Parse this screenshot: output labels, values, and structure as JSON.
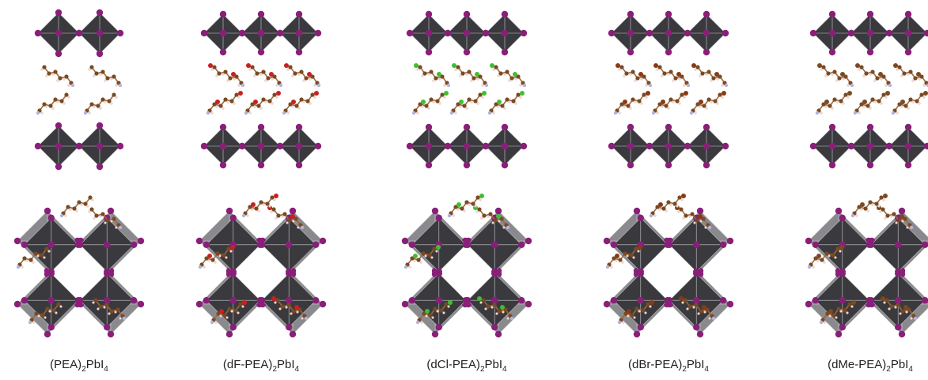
{
  "figure": {
    "panels": [
      {
        "id": "pea",
        "prefix": "(PEA)",
        "sub1": "2",
        "mid": "PbI",
        "sub2": "4",
        "halogen": "none"
      },
      {
        "id": "df-pea",
        "prefix": "(dF-PEA)",
        "sub1": "2",
        "mid": "PbI",
        "sub2": "4",
        "halogen": "F"
      },
      {
        "id": "dcl-pea",
        "prefix": "(dCl-PEA)",
        "sub1": "2",
        "mid": "PbI",
        "sub2": "4",
        "halogen": "Cl"
      },
      {
        "id": "dbr-pea",
        "prefix": "(dBr-PEA)",
        "sub1": "2",
        "mid": "PbI",
        "sub2": "4",
        "halogen": "Br"
      },
      {
        "id": "dme-pea",
        "prefix": "(dMe-PEA)",
        "sub1": "2",
        "mid": "PbI",
        "sub2": "4",
        "halogen": "Me"
      }
    ],
    "colors": {
      "octahedron_dark": "#3a3a3e",
      "octahedron_light": "#8a8a8e",
      "iodine": "#8a1f7a",
      "carbon": "#7a4a22",
      "hydrogen": "#f0d8d0",
      "nitrogen": "#b0b4e0",
      "fluorine": "#cc1f1f",
      "chlorine": "#3fbf2f",
      "bromine": "#8a3a12"
    }
  }
}
